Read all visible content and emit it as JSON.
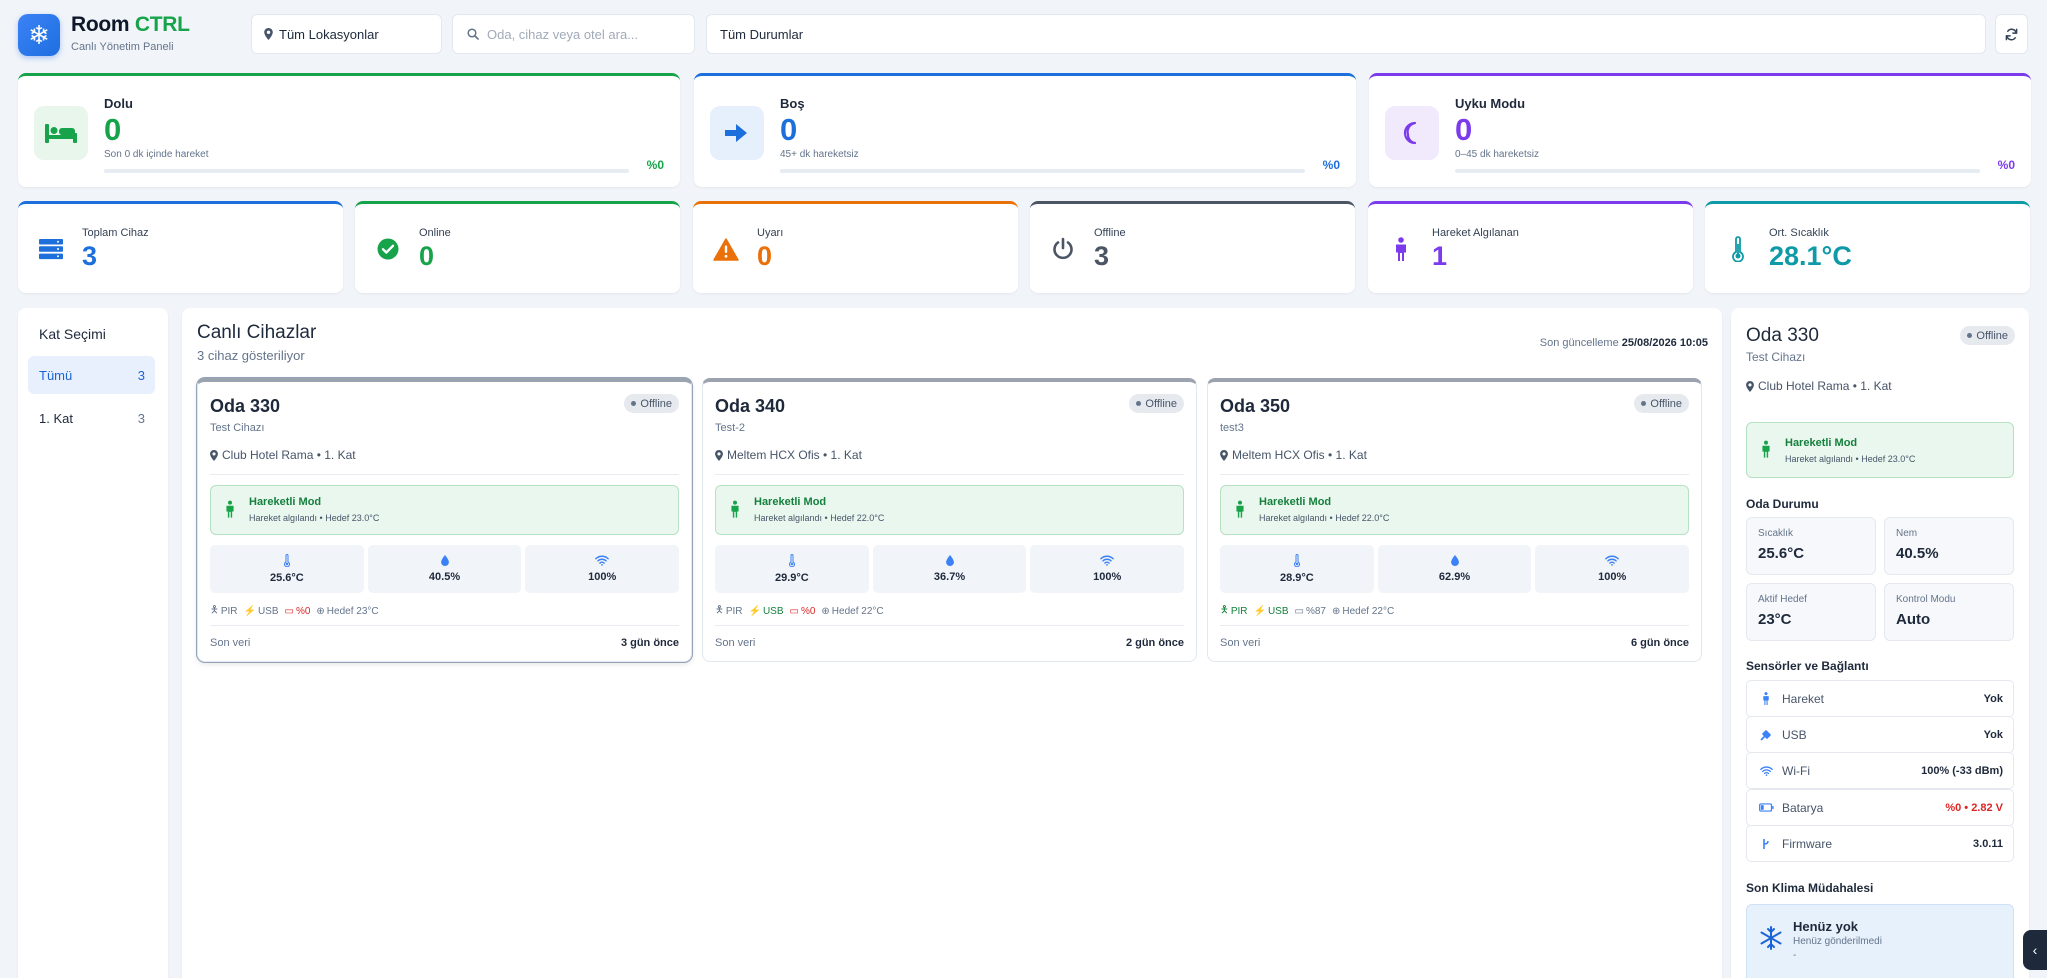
{
  "header": {
    "brand_main": "Room",
    "brand_accent": "CTRL",
    "brand_sub": "Canlı Yönetim Paneli",
    "location_select": "Tüm Lokasyonlar",
    "search_placeholder": "Oda, cihaz veya otel ara...",
    "status_select": "Tüm Durumlar"
  },
  "occupancy": [
    {
      "label": "Dolu",
      "value": "0",
      "sub": "Son 0 dk içinde hareket",
      "pct": "%0",
      "fill": 0,
      "color": "#16a34a",
      "icon": "bed-icon"
    },
    {
      "label": "Boş",
      "value": "0",
      "sub": "45+ dk hareketsiz",
      "pct": "%0",
      "fill": 0,
      "color": "#1d6fdc",
      "icon": "exit-icon"
    },
    {
      "label": "Uyku Modu",
      "value": "0",
      "sub": "0–45 dk hareketsiz",
      "pct": "%0",
      "fill": 0,
      "color": "#7c3aed",
      "icon": "moon-icon"
    }
  ],
  "stats": [
    {
      "label": "Toplam Cihaz",
      "value": "3",
      "color": "#1d6fdc",
      "icon": "server-icon"
    },
    {
      "label": "Online",
      "value": "0",
      "color": "#16a34a",
      "icon": "check-circle-icon"
    },
    {
      "label": "Uyarı",
      "value": "0",
      "color": "#ea7009",
      "icon": "warning-icon"
    },
    {
      "label": "Offline",
      "value": "3",
      "color": "#4b5563",
      "icon": "power-icon"
    },
    {
      "label": "Hareket Algılanan",
      "value": "1",
      "color": "#7c3aed",
      "icon": "person-icon"
    },
    {
      "label": "Ort. Sıcaklık",
      "value": "28.1°C",
      "color": "#0e9aa7",
      "icon": "thermometer-icon"
    }
  ],
  "floors": {
    "title": "Kat Seçimi",
    "items": [
      {
        "label": "Tümü",
        "count": "3"
      },
      {
        "label": "1. Kat",
        "count": "3"
      }
    ]
  },
  "devices_panel": {
    "title": "Canlı Cihazlar",
    "subtitle": "3 cihaz gösteriliyor",
    "update_label": "Son güncelleme",
    "update_value": "25/08/2026 10:05"
  },
  "devices": [
    {
      "room": "Oda 330",
      "name": "Test Cihazı",
      "status": "Offline",
      "location": "Club Hotel Rama • 1. Kat",
      "mode_title": "Hareketli Mod",
      "mode_sub": "Hareket algılandı • Hedef 23.0°C",
      "temp": "25.6°C",
      "humidity": "40.5%",
      "wifi": "100%",
      "pir": "PIR",
      "usb": "USB",
      "battery": "%0",
      "target": "Hedef 23°C",
      "last_label": "Son veri",
      "last_value": "3 gün önce"
    },
    {
      "room": "Oda 340",
      "name": "Test-2",
      "status": "Offline",
      "location": "Meltem HCX Ofis • 1. Kat",
      "mode_title": "Hareketli Mod",
      "mode_sub": "Hareket algılandı • Hedef 22.0°C",
      "temp": "29.9°C",
      "humidity": "36.7%",
      "wifi": "100%",
      "pir": "PIR",
      "usb": "USB",
      "battery": "%0",
      "target": "Hedef 22°C",
      "last_label": "Son veri",
      "last_value": "2 gün önce"
    },
    {
      "room": "Oda 350",
      "name": "test3",
      "status": "Offline",
      "location": "Meltem HCX Ofis • 1. Kat",
      "mode_title": "Hareketli Mod",
      "mode_sub": "Hareket algılandı • Hedef 22.0°C",
      "temp": "28.9°C",
      "humidity": "62.9%",
      "wifi": "100%",
      "pir": "PIR",
      "usb": "USB",
      "battery": "%87",
      "target": "Hedef 22°C",
      "last_label": "Son veri",
      "last_value": "6 gün önce"
    }
  ],
  "detail": {
    "room": "Oda 330",
    "name": "Test Cihazı",
    "status": "Offline",
    "location": "Club Hotel Rama • 1. Kat",
    "mode_title": "Hareketli Mod",
    "mode_sub": "Hareket algılandı • Hedef 23.0°C",
    "room_status_title": "Oda Durumu",
    "tiles": [
      {
        "label": "Sıcaklık",
        "value": "25.6°C"
      },
      {
        "label": "Nem",
        "value": "40.5%"
      },
      {
        "label": "Aktif Hedef",
        "value": "23°C"
      },
      {
        "label": "Kontrol Modu",
        "value": "Auto"
      }
    ],
    "sensors_title": "Sensörler ve Bağlantı",
    "sensors": [
      {
        "label": "Hareket",
        "value": "Yok",
        "icon": "person-icon"
      },
      {
        "label": "USB",
        "value": "Yok",
        "icon": "plug-icon"
      },
      {
        "label": "Wi-Fi",
        "value": "100% (-33 dBm)",
        "icon": "wifi-icon"
      },
      {
        "label": "Batarya",
        "value": "%0 • 2.82 V",
        "icon": "battery-icon"
      },
      {
        "label": "Firmware",
        "value": "3.0.11",
        "icon": "code-branch-icon"
      }
    ],
    "klima_title": "Son Klima Müdahalesi",
    "klima_main": "Henüz yok",
    "klima_sub": "Henüz gönderilmedi",
    "klima_dash": "-"
  }
}
